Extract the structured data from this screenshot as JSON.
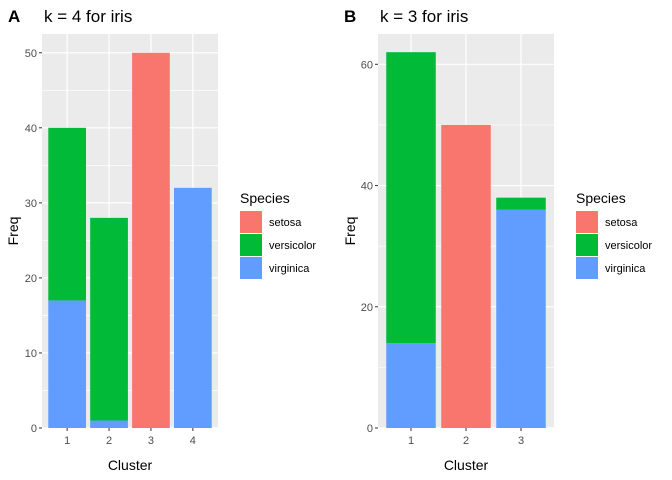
{
  "chart_data": [
    {
      "type": "bar",
      "stacked": true,
      "panel_label": "A",
      "title": "k = 4 for iris",
      "xlabel": "Cluster",
      "ylabel": "Freq",
      "categories": [
        "1",
        "2",
        "3",
        "4"
      ],
      "ylim": [
        0,
        52.5
      ],
      "yticks": [
        0,
        10,
        20,
        30,
        40,
        50
      ],
      "grid": true,
      "series": [
        {
          "name": "virginica",
          "color": "#619CFF",
          "values": [
            17,
            1,
            0,
            32
          ]
        },
        {
          "name": "versicolor",
          "color": "#00BA38",
          "values": [
            23,
            27,
            0,
            0
          ]
        },
        {
          "name": "setosa",
          "color": "#F8766D",
          "values": [
            0,
            0,
            50,
            0
          ]
        }
      ],
      "legend": {
        "title": "Species",
        "position": "right",
        "entries": [
          "setosa",
          "versicolor",
          "virginica"
        ]
      }
    },
    {
      "type": "bar",
      "stacked": true,
      "panel_label": "B",
      "title": "k = 3 for iris",
      "xlabel": "Cluster",
      "ylabel": "Freq",
      "categories": [
        "1",
        "2",
        "3"
      ],
      "ylim": [
        0,
        65
      ],
      "yticks": [
        0,
        20,
        40,
        60
      ],
      "grid": true,
      "series": [
        {
          "name": "virginica",
          "color": "#619CFF",
          "values": [
            14,
            0,
            36
          ]
        },
        {
          "name": "versicolor",
          "color": "#00BA38",
          "values": [
            48,
            0,
            2
          ]
        },
        {
          "name": "setosa",
          "color": "#F8766D",
          "values": [
            0,
            50,
            0
          ]
        }
      ],
      "legend": {
        "title": "Species",
        "position": "right",
        "entries": [
          "setosa",
          "versicolor",
          "virginica"
        ]
      }
    }
  ]
}
